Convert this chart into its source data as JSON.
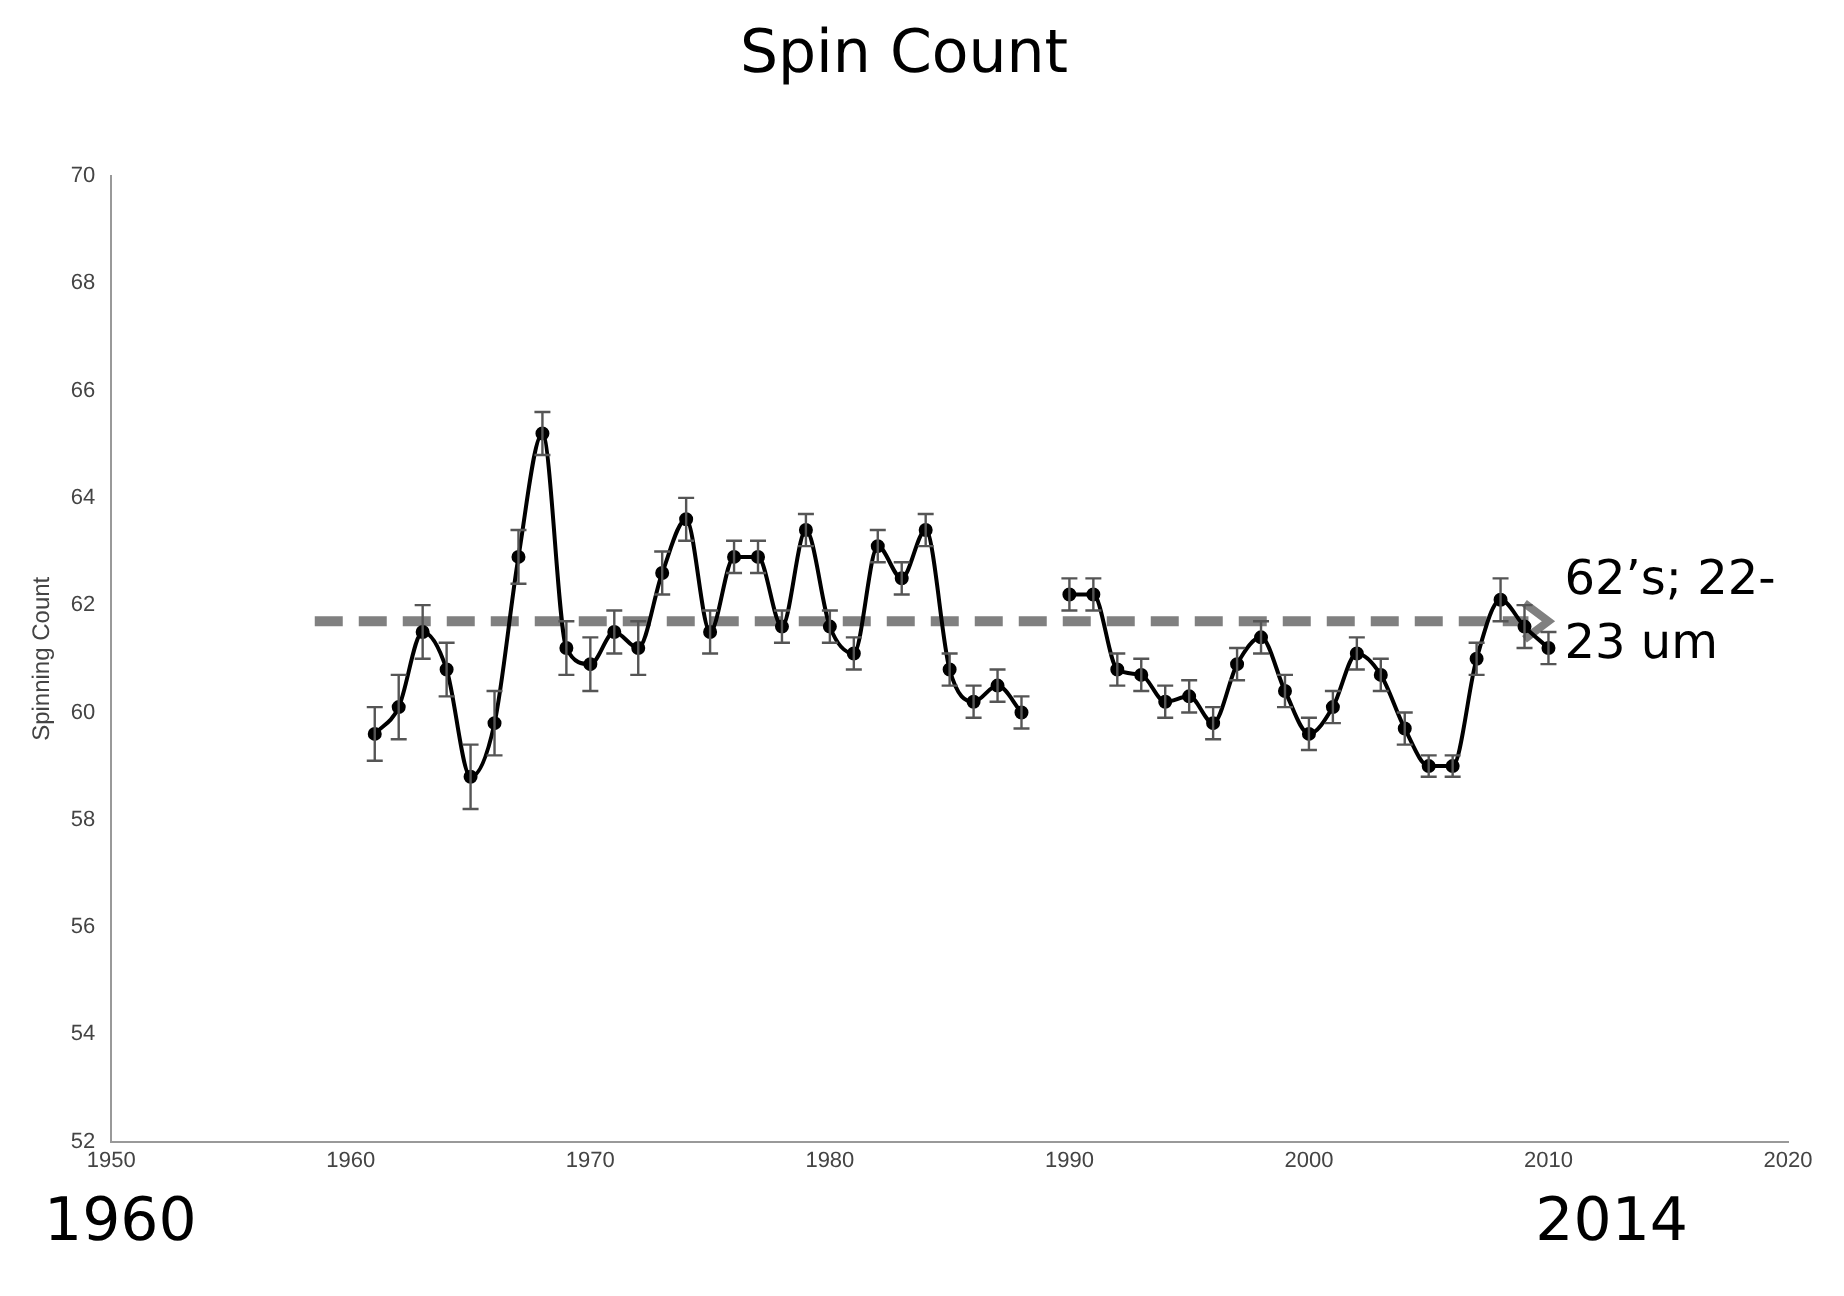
{
  "chart_data": {
    "type": "line",
    "title": "Spin Count",
    "ylabel": "Spinning Count",
    "x": [
      1961,
      1962,
      1963,
      1964,
      1965,
      1966,
      1967,
      1968,
      1969,
      1970,
      1971,
      1972,
      1973,
      1974,
      1975,
      1976,
      1977,
      1978,
      1979,
      1980,
      1981,
      1982,
      1983,
      1984,
      1985,
      1986,
      1987,
      1988,
      1989,
      1990,
      1991,
      1992,
      1993,
      1994,
      1995,
      1996,
      1997,
      1998,
      1999,
      2000,
      2001,
      2002,
      2003,
      2004,
      2005,
      2006,
      2007,
      2008,
      2009,
      2010
    ],
    "series": [
      {
        "color": "#000000",
        "values": [
          59.6,
          60.1,
          61.5,
          60.8,
          58.8,
          59.8,
          62.9,
          65.2,
          61.2,
          60.9,
          61.5,
          61.2,
          62.6,
          63.6,
          61.5,
          62.9,
          62.9,
          61.6,
          63.4,
          61.6,
          61.1,
          63.1,
          62.5,
          63.4,
          60.8,
          60.2,
          60.5,
          60.0,
          null,
          62.2,
          62.2,
          60.8,
          60.7,
          60.2,
          60.3,
          59.8,
          60.9,
          61.4,
          60.4,
          59.6,
          60.1,
          61.1,
          60.7,
          59.7,
          59.0,
          59.0,
          61.0,
          62.1,
          61.6,
          61.2
        ],
        "errors": [
          0.5,
          0.6,
          0.5,
          0.5,
          0.6,
          0.6,
          0.5,
          0.4,
          0.5,
          0.5,
          0.4,
          0.5,
          0.4,
          0.4,
          0.4,
          0.3,
          0.3,
          0.3,
          0.3,
          0.3,
          0.3,
          0.3,
          0.3,
          0.3,
          0.3,
          0.3,
          0.3,
          0.3,
          null,
          0.3,
          0.3,
          0.3,
          0.3,
          0.3,
          0.3,
          0.3,
          0.3,
          0.3,
          0.3,
          0.3,
          0.3,
          0.3,
          0.3,
          0.3,
          0.2,
          0.2,
          0.3,
          0.4,
          0.4,
          0.3
        ]
      }
    ],
    "xlim": [
      1950,
      2020
    ],
    "xticks": [
      1950,
      1960,
      1970,
      1980,
      1990,
      2000,
      2010,
      2020
    ],
    "ylim": [
      52,
      70
    ],
    "yticks": [
      52,
      54,
      56,
      58,
      60,
      62,
      64,
      66,
      68,
      70
    ],
    "grid": false,
    "legend": false,
    "marker": "circle",
    "line_style": "solid",
    "ref_lines": [
      {
        "axis": "y",
        "value": 61.7,
        "color": "#808080",
        "line_style": "dashed",
        "label": "62’s; 22-23 um"
      }
    ],
    "annotations": [
      "1960",
      "2014"
    ]
  }
}
